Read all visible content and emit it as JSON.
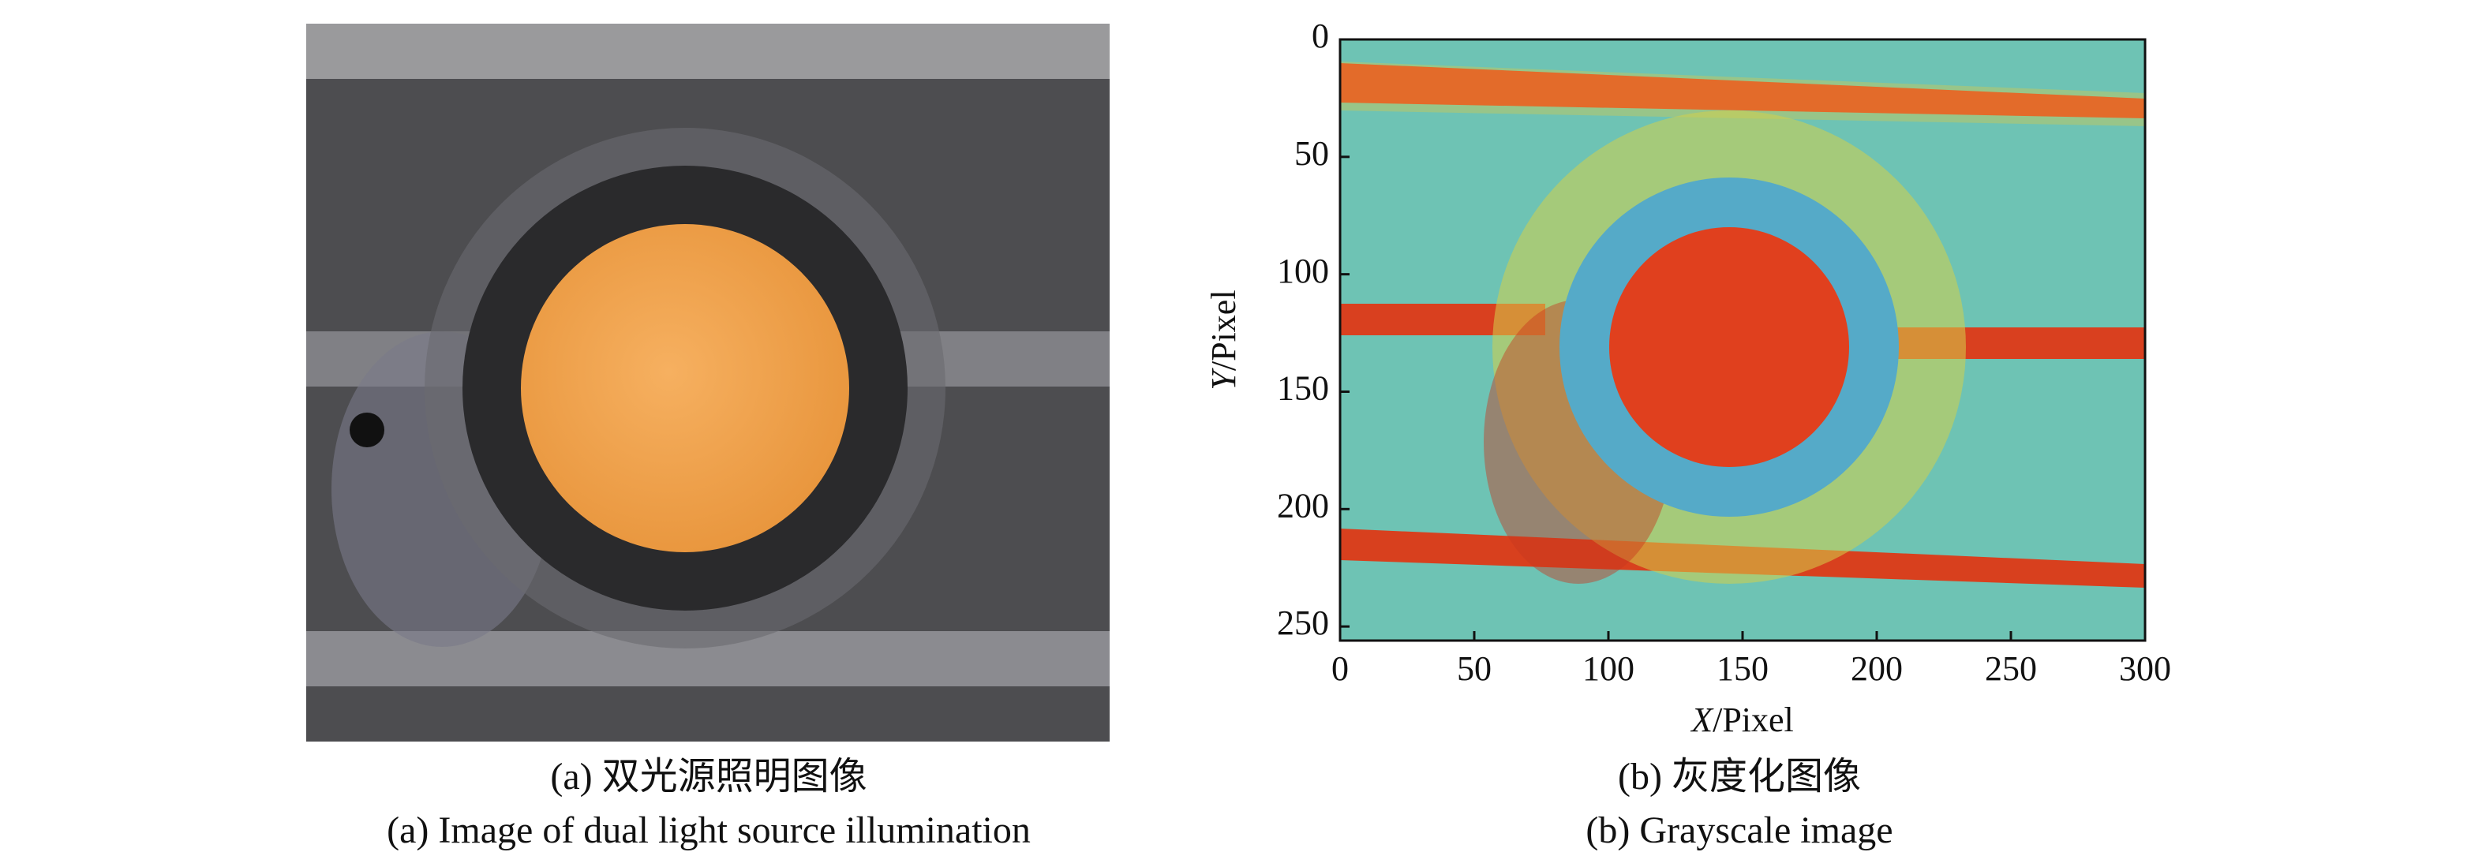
{
  "figure": {
    "panel_a": {
      "caption_zh": "(a) 双光源照明图像",
      "caption_en": "(a) Image of dual light source illumination"
    },
    "panel_b": {
      "caption_zh": "(b) 灰度化图像",
      "caption_en": "(b) Grayscale image",
      "xlabel": {
        "var": "X",
        "unit": "/Pixel"
      },
      "ylabel": {
        "var": "Y",
        "unit": "/Pixel"
      },
      "xlim": [
        0,
        300
      ],
      "xticks": [
        0,
        50,
        100,
        150,
        200,
        250,
        300
      ],
      "ylim": [
        0,
        256
      ],
      "yticks": [
        0,
        50,
        100,
        150,
        200,
        250
      ],
      "y_inverted": true
    }
  }
}
